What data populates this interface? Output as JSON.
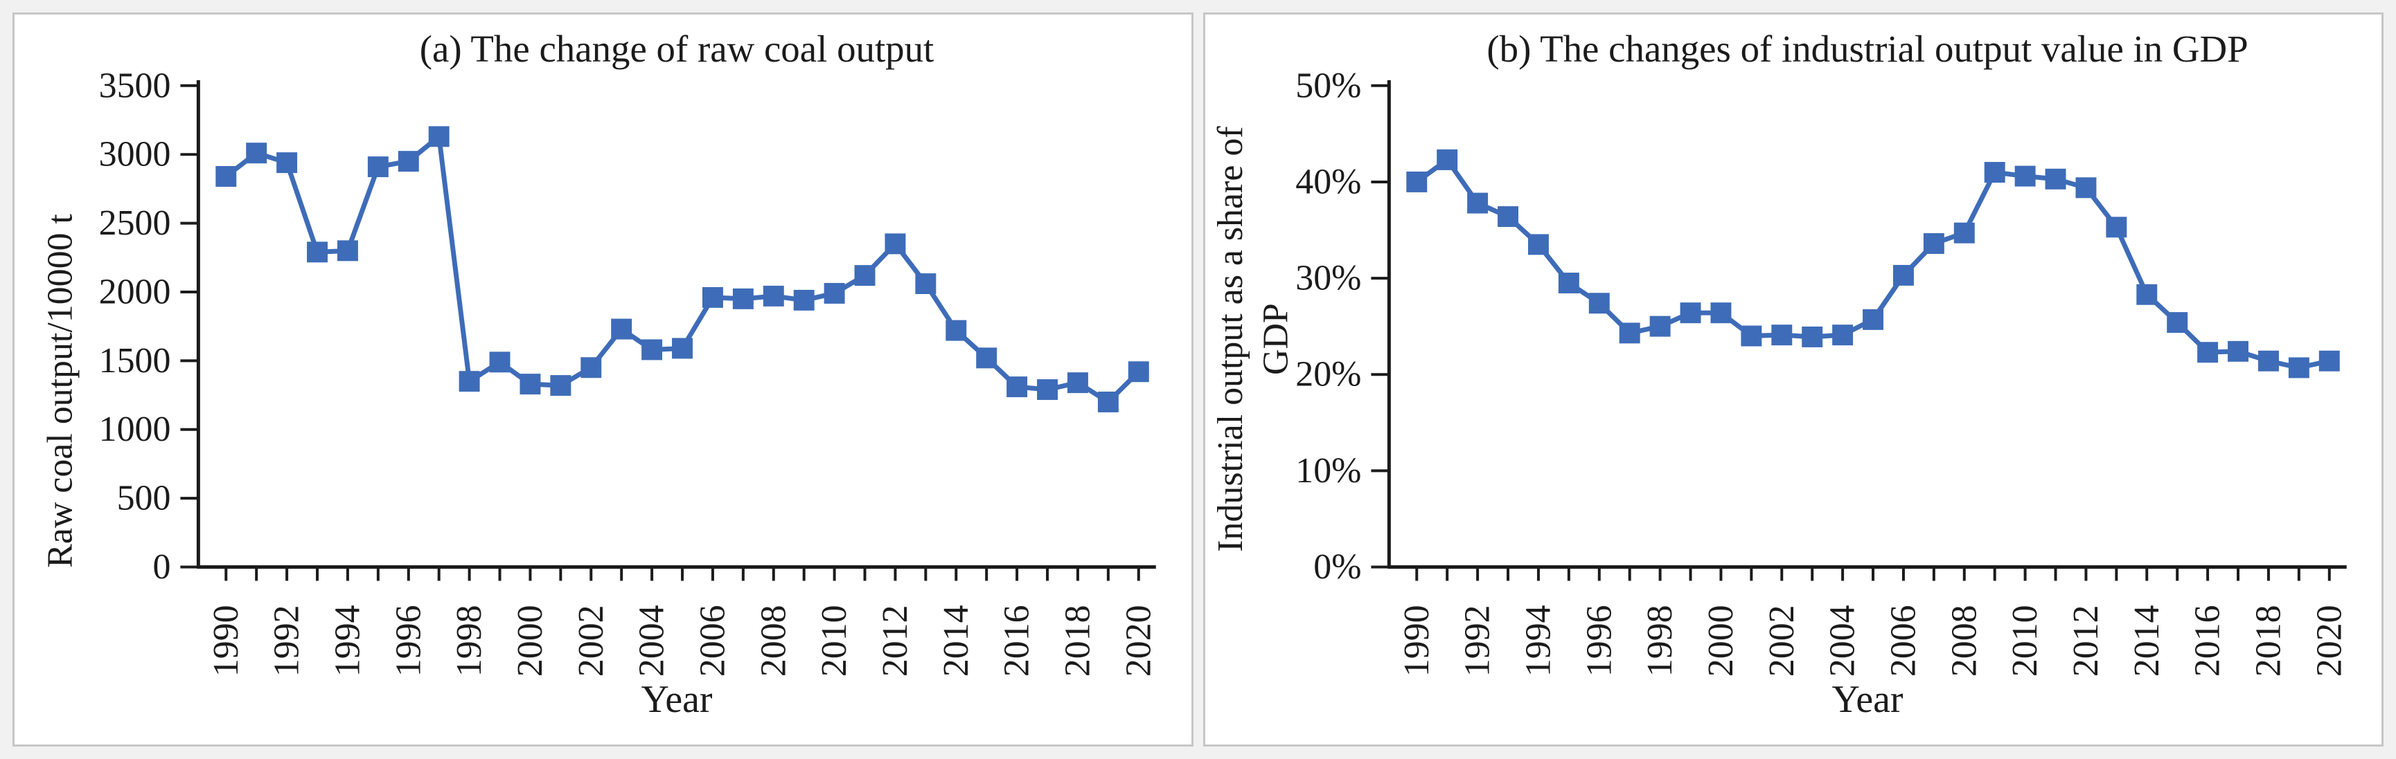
{
  "page": {
    "background": "#f1f1f1",
    "panel_background": "#ffffff",
    "panel_border_color": "#c6c6c6",
    "axis_color": "#1b1b1b",
    "accent_line_color": "#3E6CB8"
  },
  "chart_data": [
    {
      "type": "line",
      "title": "(a) The change of raw coal output",
      "xlabel": "Year",
      "ylabel_lines": [
        "Raw coal output/10000 t"
      ],
      "x": [
        1990,
        1991,
        1992,
        1993,
        1994,
        1995,
        1996,
        1997,
        1998,
        1999,
        2000,
        2001,
        2002,
        2003,
        2004,
        2005,
        2006,
        2007,
        2008,
        2009,
        2010,
        2011,
        2012,
        2013,
        2014,
        2015,
        2016,
        2017,
        2018,
        2019,
        2020
      ],
      "x_label_every": 2,
      "series": [
        {
          "name": "Raw coal output",
          "values": [
            2840,
            3010,
            2940,
            2290,
            2300,
            2910,
            2950,
            3130,
            1350,
            1490,
            1330,
            1320,
            1450,
            1730,
            1580,
            1590,
            1960,
            1950,
            1970,
            1940,
            1990,
            2120,
            2350,
            2060,
            1720,
            1520,
            1310,
            1290,
            1340,
            1200,
            1420
          ]
        }
      ],
      "ylim": [
        0,
        3500
      ],
      "ytick_step": 500,
      "ytick_suffix": "",
      "ytick_labels": [
        "0",
        "500",
        "1000",
        "1500",
        "2000",
        "2500",
        "3000",
        "3500"
      ],
      "line_color": "#3E6CB8",
      "marker": "square",
      "grid": false,
      "legend": "none"
    },
    {
      "type": "line",
      "title": "(b) The changes of industrial output value in GDP",
      "xlabel": "Year",
      "ylabel_lines": [
        "Industrial output as a share of",
        "GDP"
      ],
      "x": [
        1990,
        1991,
        1992,
        1993,
        1994,
        1995,
        1996,
        1997,
        1998,
        1999,
        2000,
        2001,
        2002,
        2003,
        2004,
        2005,
        2006,
        2007,
        2008,
        2009,
        2010,
        2011,
        2012,
        2013,
        2014,
        2015,
        2016,
        2017,
        2018,
        2019,
        2020
      ],
      "x_label_every": 2,
      "series": [
        {
          "name": "Industrial output share of GDP",
          "values": [
            40.0,
            42.3,
            37.8,
            36.4,
            33.5,
            29.5,
            27.4,
            24.3,
            25.0,
            26.4,
            26.4,
            24.0,
            24.1,
            23.9,
            24.1,
            25.7,
            30.3,
            33.6,
            34.7,
            41.0,
            40.6,
            40.3,
            39.4,
            35.3,
            28.3,
            25.4,
            22.3,
            22.4,
            21.4,
            20.7,
            21.4
          ]
        }
      ],
      "ylim": [
        0,
        50
      ],
      "ytick_step": 10,
      "ytick_suffix": "%",
      "ytick_labels": [
        "0%",
        "10%",
        "20%",
        "30%",
        "40%",
        "50%"
      ],
      "line_color": "#3E6CB8",
      "marker": "square",
      "grid": false,
      "legend": "none"
    }
  ]
}
